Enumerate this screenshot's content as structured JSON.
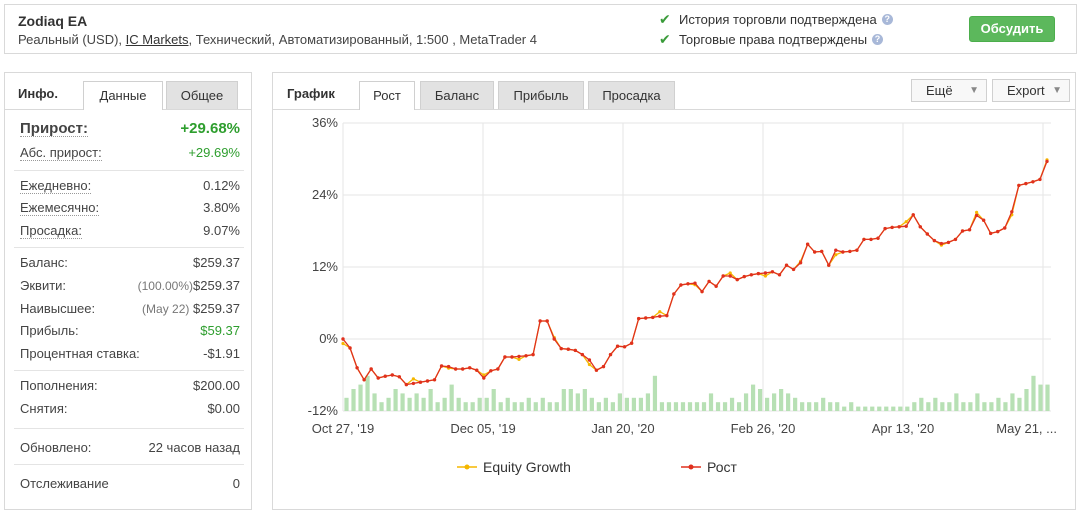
{
  "header": {
    "title": "Zodiaq EA",
    "sub_prefix": "Реальный (USD),",
    "broker": "IC Markets",
    "sub_suffix": ", Технический, Автоматизированный, 1:500 , MetaTrader 4",
    "verify_history": "История торговли подтверждена",
    "verify_rights": "Торговые права подтверждены",
    "discuss_button": "Обсудить",
    "check_icon": "✔",
    "help_icon": "?"
  },
  "left": {
    "title": "Инфо.",
    "tabs": [
      "Данные",
      "Общее"
    ],
    "active_tab": "Данные",
    "growth_label": "Прирост:",
    "growth_value": "+29.68%",
    "abs_label": "Абс. прирост:",
    "abs_value": "+29.69%",
    "daily_label": "Ежедневно:",
    "daily_value": "0.12%",
    "monthly_label": "Ежемесячно:",
    "monthly_value": "3.80%",
    "drawdown_label": "Просадка:",
    "drawdown_value": "9.07%",
    "balance_label": "Баланс:",
    "balance_value": "$259.37",
    "equity_label": "Эквити:",
    "equity_pct": "(100.00%)",
    "equity_value": "$259.37",
    "highest_label": "Наивысшее:",
    "highest_date": "(May 22)",
    "highest_value": "$259.37",
    "profit_label": "Прибыль:",
    "profit_value": "$59.37",
    "interest_label": "Процентная ставка:",
    "interest_value": "-$1.91",
    "deposits_label": "Пополнения:",
    "deposits_value": "$200.00",
    "withdrawals_label": "Снятия:",
    "withdrawals_value": "$0.00",
    "updated_label": "Обновлено:",
    "updated_value": "22 часов назад",
    "tracking_label": "Отслеживание",
    "tracking_value": "0"
  },
  "right": {
    "title": "График",
    "tabs": [
      "Рост",
      "Баланс",
      "Прибыль",
      "Просадка"
    ],
    "active_tab": "Рост",
    "more_label": "Ещё",
    "export_label": "Export",
    "dropdown_icon": "▼"
  },
  "chart_data": {
    "type": "line",
    "ylim": [
      -12,
      36
    ],
    "yticks": [
      "36%",
      "24%",
      "12%",
      "0%",
      "-12%"
    ],
    "ytick_values": [
      36,
      24,
      12,
      0,
      -12
    ],
    "xticks": [
      "Oct 27, '19",
      "Dec 05, '19",
      "Jan 20, '20",
      "Feb 26, '20",
      "Apr 13, '20",
      "May 21, ..."
    ],
    "colors": {
      "growth": "#e0301e",
      "equity": "#f5b700",
      "bars": "#b7e0b4",
      "grid": "#e6e6e6"
    },
    "series": [
      {
        "name": "Equity Growth"
      },
      {
        "name": "Рост",
        "values": [
          0,
          -1.5,
          -4.8,
          -6.8,
          -5,
          -6.5,
          -6.2,
          -6,
          -6.3,
          -7.6,
          -7.4,
          -7.2,
          -7,
          -6.8,
          -4.5,
          -4.6,
          -5,
          -5,
          -4.8,
          -5.2,
          -6.5,
          -5.3,
          -5,
          -3,
          -3,
          -2.9,
          -2.8,
          -2.6,
          3,
          3,
          0,
          -1.6,
          -1.7,
          -1.9,
          -2.6,
          -3.5,
          -5.2,
          -4.6,
          -2.6,
          -1.2,
          -1.3,
          -0.7,
          3.4,
          3.5,
          3.6,
          3.8,
          3.9,
          7.5,
          9,
          9.2,
          9.3,
          7.9,
          9.6,
          8.8,
          10.5,
          10.5,
          9.9,
          10.4,
          10.7,
          10.9,
          11,
          11.2,
          10.7,
          12.3,
          11.6,
          12.7,
          15.8,
          14.5,
          14.6,
          12.3,
          14.8,
          14.5,
          14.6,
          14.8,
          16.6,
          16.6,
          16.8,
          18.4,
          18.6,
          18.7,
          18.8,
          20.7,
          18.7,
          17.5,
          16.4,
          15.9,
          16.1,
          16.6,
          18,
          18.2,
          20.6,
          19.8,
          17.6,
          17.9,
          18.5,
          21.2,
          25.6,
          25.9,
          26.2,
          26.6,
          29.6
        ]
      },
      {
        "name": "Bars",
        "values": [
          3,
          5,
          6,
          8,
          4,
          2,
          3,
          5,
          4,
          3,
          4,
          3,
          5,
          2,
          3,
          6,
          3,
          2,
          2,
          3,
          3,
          5,
          2,
          3,
          2,
          2,
          3,
          2,
          3,
          2,
          2,
          5,
          5,
          4,
          5,
          3,
          2,
          3,
          2,
          4,
          3,
          3,
          3,
          4,
          8,
          2,
          2,
          2,
          2,
          2,
          2,
          2,
          4,
          2,
          2,
          3,
          2,
          4,
          6,
          5,
          3,
          4,
          5,
          4,
          3,
          2,
          2,
          2,
          3,
          2,
          2,
          1,
          2,
          1,
          1,
          1,
          1,
          1,
          1,
          1,
          1,
          2,
          3,
          2,
          3,
          2,
          2,
          4,
          2,
          2,
          4,
          2,
          2,
          3,
          2,
          4,
          3,
          5,
          8,
          6,
          6
        ]
      }
    ]
  }
}
